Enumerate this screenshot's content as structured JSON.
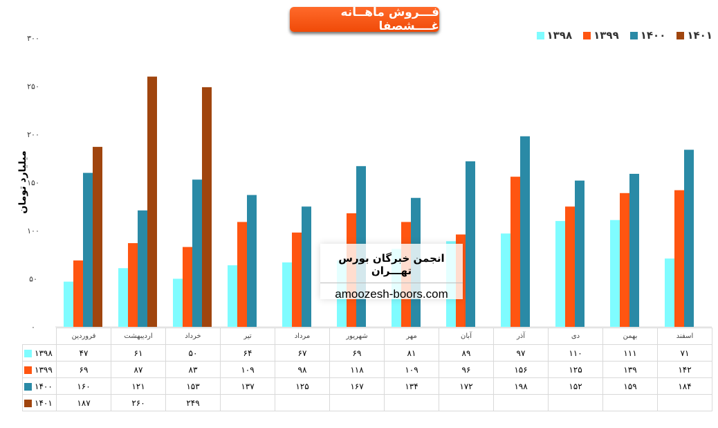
{
  "title": "فـــروش ماهــانه غــــشصفا",
  "watermark": {
    "line1": "انجمن خبرگان بورس تهـــران",
    "line2": "amoozesh-boors.com"
  },
  "chart_data": {
    "type": "bar",
    "title": "فـــروش ماهــانه غــــشصفا",
    "ylabel": "میلیارد تومان",
    "xlabel": "",
    "ylim": [
      0,
      300
    ],
    "yticks": [
      0,
      50,
      100,
      150,
      200,
      250,
      300
    ],
    "ytick_labels": [
      "۰",
      "۵۰",
      "۱۰۰",
      "۱۵۰",
      "۲۰۰",
      "۲۵۰",
      "۳۰۰"
    ],
    "grid": false,
    "legend_position": "top-right",
    "categories": [
      "فروردین",
      "اردیبهشت",
      "خرداد",
      "تیر",
      "مرداد",
      "شهریور",
      "مهر",
      "آبان",
      "آذر",
      "دی",
      "بهمن",
      "اسفند"
    ],
    "series": [
      {
        "name": "۱۳۹۸",
        "color": "#7ffcff",
        "values": [
          47,
          61,
          50,
          64,
          67,
          69,
          81,
          89,
          97,
          110,
          111,
          71
        ]
      },
      {
        "name": "۱۳۹۹",
        "color": "#ff5511",
        "values": [
          69,
          87,
          83,
          109,
          98,
          118,
          109,
          96,
          156,
          125,
          139,
          142
        ]
      },
      {
        "name": "۱۴۰۰",
        "color": "#2a8aa6",
        "values": [
          160,
          121,
          153,
          137,
          125,
          167,
          134,
          172,
          198,
          152,
          159,
          184
        ]
      },
      {
        "name": "۱۴۰۱",
        "color": "#a0450e",
        "values": [
          187,
          260,
          249,
          null,
          null,
          null,
          null,
          null,
          null,
          null,
          null,
          null
        ]
      }
    ]
  }
}
